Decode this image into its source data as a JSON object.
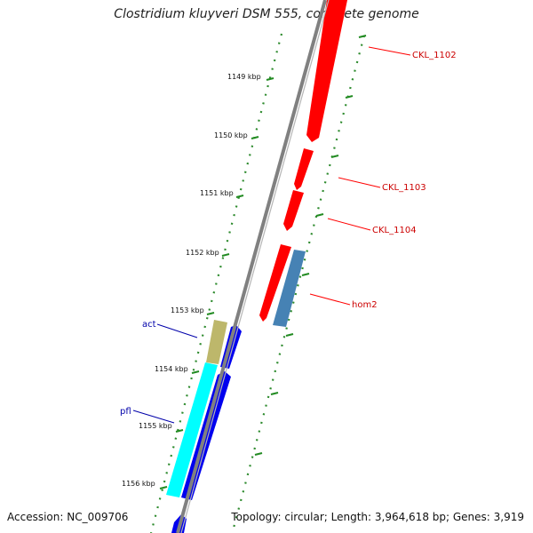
{
  "title": "Clostridium kluyveri DSM 555, complete genome",
  "footer": {
    "accession": "Accession: NC_009706",
    "topology": "Topology: circular; Length: 3,964,618 bp; Genes: 3,919"
  },
  "colors": {
    "backbone": "#808080",
    "kbp_tick": "#228b22",
    "ruler_dot": "#2e8b2e",
    "forward_gene": "#ff0000",
    "reverse_gene": "#0000ee",
    "label_forward": "#cc0000",
    "label_reverse": "#0000aa",
    "hom2": "#4682b4",
    "act": "#bdb76b",
    "pfl": "#00ffff"
  },
  "kbp_ticks": [
    "1149 kbp",
    "1150 kbp",
    "1151 kbp",
    "1152 kbp",
    "1153 kbp",
    "1154 kbp",
    "1155 kbp",
    "1156 kbp"
  ],
  "gene_labels": [
    {
      "name": "CKL_1102",
      "strand": "forward"
    },
    {
      "name": "CKL_1103",
      "strand": "forward"
    },
    {
      "name": "CKL_1104",
      "strand": "forward"
    },
    {
      "name": "hom2",
      "strand": "forward"
    },
    {
      "name": "act",
      "strand": "reverse"
    },
    {
      "name": "pfl",
      "strand": "reverse"
    }
  ]
}
